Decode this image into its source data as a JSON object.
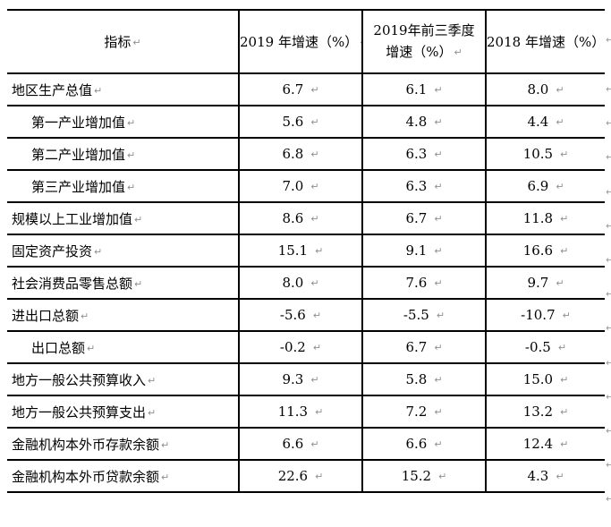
{
  "document": {
    "background_color": "#ffffff",
    "border_color": "#000000",
    "text_color": "#000000",
    "mark_color": "#8f8f8f"
  },
  "table": {
    "pilcrow": "↵",
    "header": {
      "indicator": "指标",
      "growth_2019": "2019 年增速（%）",
      "growth_2019_q1_3_line1": "2019年前三季度",
      "growth_2019_q1_3_line2": "增速（%）",
      "growth_2018": "2018 年增速（%）"
    },
    "rows": [
      {
        "label": "地区生产总值",
        "indent": false,
        "v2019": "6.7",
        "v2019q3": "6.1",
        "v2018": "8.0"
      },
      {
        "label": "第一产业增加值",
        "indent": true,
        "v2019": "5.6",
        "v2019q3": "4.8",
        "v2018": "4.4"
      },
      {
        "label": "第二产业增加值",
        "indent": true,
        "v2019": "6.8",
        "v2019q3": "6.3",
        "v2018": "10.5"
      },
      {
        "label": "第三产业增加值",
        "indent": true,
        "v2019": "7.0",
        "v2019q3": "6.3",
        "v2018": "6.9"
      },
      {
        "label": "规模以上工业增加值",
        "indent": false,
        "v2019": "8.6",
        "v2019q3": "6.7",
        "v2018": "11.8"
      },
      {
        "label": "固定资产投资",
        "indent": false,
        "v2019": "15.1",
        "v2019q3": "9.1",
        "v2018": "16.6"
      },
      {
        "label": "社会消费品零售总额",
        "indent": false,
        "v2019": "8.0",
        "v2019q3": "7.6",
        "v2018": "9.7"
      },
      {
        "label": "进出口总额",
        "indent": false,
        "v2019": "-5.6",
        "v2019q3": "-5.5",
        "v2018": "-10.7"
      },
      {
        "label": "出口总额",
        "indent": true,
        "v2019": "-0.2",
        "v2019q3": "6.7",
        "v2018": "-0.5"
      },
      {
        "label": "地方一般公共预算收入",
        "indent": false,
        "v2019": "9.3",
        "v2019q3": "5.8",
        "v2018": "15.0"
      },
      {
        "label": "地方一般公共预算支出",
        "indent": false,
        "v2019": "11.3",
        "v2019q3": "7.2",
        "v2018": "13.2"
      },
      {
        "label": "金融机构本外币存款余额",
        "indent": false,
        "v2019": "6.6",
        "v2019q3": "6.6",
        "v2018": "12.4"
      },
      {
        "label": "金融机构本外币贷款余额",
        "indent": false,
        "v2019": "22.6",
        "v2019q3": "15.2",
        "v2018": "4.3"
      }
    ]
  }
}
